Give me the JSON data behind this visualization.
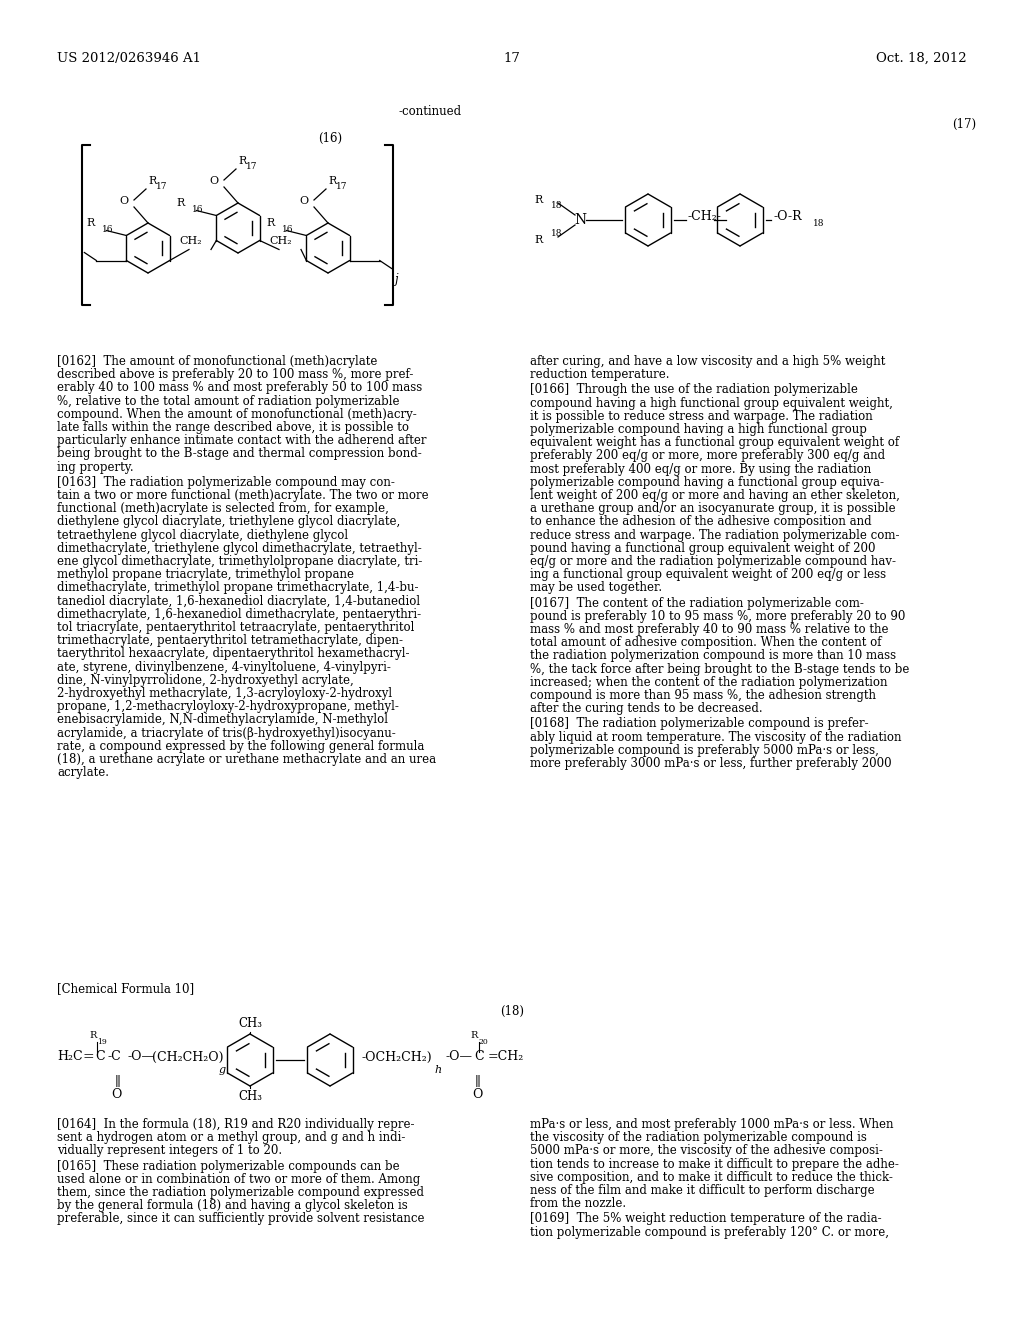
{
  "header_left": "US 2012/0263946 A1",
  "header_right": "Oct. 18, 2012",
  "page_number": "17",
  "continued_label": "-continued",
  "formula_16_label": "(16)",
  "formula_17_label": "(17)",
  "formula_18_label": "(18)",
  "chem_formula_10_label": "[Chemical Formula 10]",
  "background_color": "#ffffff",
  "text_color": "#000000",
  "para_0162": "[0162]  The amount of monofunctional (meth)acrylate\ndescribed above is preferably 20 to 100 mass %, more pref-\nerably 40 to 100 mass % and most preferably 50 to 100 mass\n%, relative to the total amount of radiation polymerizable\ncompound. When the amount of monofunctional (meth)acry-\nlate falls within the range described above, it is possible to\nparticularly enhance intimate contact with the adherend after\nbeing brought to the B-stage and thermal compression bond-\ning property.",
  "para_0163": "[0163]  The radiation polymerizable compound may con-\ntain a two or more functional (meth)acrylate. The two or more\nfunctional (meth)acrylate is selected from, for example,\ndiethylene glycol diacrylate, triethylene glycol diacrylate,\ntetraethylene glycol diacrylate, diethylene glycol\ndimethacrylate, triethylene glycol dimethacrylate, tetraethyl-\nene glycol dimethacrylate, trimethylolpropane diacrylate, tri-\nmethylol propane triacrylate, trimethylol propane\ndimethacrylate, trimethylol propane trimethacrylate, 1,4-bu-\ntanediol diacrylate, 1,6-hexanediol diacrylate, 1,4-butanediol\ndimethacrylate, 1,6-hexanediol dimethacrylate, pentaerythri-\ntol triacrylate, pentaerythritol tetraacrylate, pentaerythritol\ntrimethacrylate, pentaerythritol tetramethacrylate, dipen-\ntaerythritol hexaacrylate, dipentaerythritol hexamethacryl-\nate, styrene, divinylbenzene, 4-vinyltoluene, 4-vinylpyri-\ndine, N-vinylpyrrolidone, 2-hydroxyethyl acrylate,\n2-hydroxyethyl methacrylate, 1,3-acryloyloxy-2-hydroxyl\npropane, 1,2-methacryloyloxy-2-hydroxypropane, methyl-\nenebisacrylamide, N,N-dimethylacrylamide, N-methylol\nacrylamide, a triacrylate of tris(β-hydroxyethyl)isocyanu-\nrate, a compound expressed by the following general formula\n(18), a urethane acrylate or urethane methacrylate and an urea\nacrylate.",
  "para_right_cont": "after curing, and have a low viscosity and a high 5% weight\nreduction temperature.",
  "para_0166": "[0166]  Through the use of the radiation polymerizable\ncompound having a high functional group equivalent weight,\nit is possible to reduce stress and warpage. The radiation\npolymerizable compound having a high functional group\nequivalent weight has a functional group equivalent weight of\npreferably 200 eq/g or more, more preferably 300 eq/g and\nmost preferably 400 eq/g or more. By using the radiation\npolymerizable compound having a functional group equiva-\nlent weight of 200 eq/g or more and having an ether skeleton,\na urethane group and/or an isocyanurate group, it is possible\nto enhance the adhesion of the adhesive composition and\nreduce stress and warpage. The radiation polymerizable com-\npound having a functional group equivalent weight of 200\neq/g or more and the radiation polymerizable compound hav-\ning a functional group equivalent weight of 200 eq/g or less\nmay be used together.",
  "para_0167": "[0167]  The content of the radiation polymerizable com-\npound is preferably 10 to 95 mass %, more preferably 20 to 90\nmass % and most preferably 40 to 90 mass % relative to the\ntotal amount of adhesive composition. When the content of\nthe radiation polymerization compound is more than 10 mass\n%, the tack force after being brought to the B-stage tends to be\nincreased; when the content of the radiation polymerization\ncompound is more than 95 mass %, the adhesion strength\nafter the curing tends to be decreased.",
  "para_0168": "[0168]  The radiation polymerizable compound is prefer-\nably liquid at room temperature. The viscosity of the radiation\npolymerizable compound is preferably 5000 mPa·s or less,\nmore preferably 3000 mPa·s or less, further preferably 2000",
  "para_0164": "[0164]  In the formula (18), R19 and R20 individually repre-\nsent a hydrogen atom or a methyl group, and g and h indi-\nvidually represent integers of 1 to 20.",
  "para_0165": "[0165]  These radiation polymerizable compounds can be\nused alone or in combination of two or more of them. Among\nthem, since the radiation polymerizable compound expressed\nby the general formula (18) and having a glycol skeleton is\npreferable, since it can sufficiently provide solvent resistance",
  "para_mpa": "mPa·s or less, and most preferably 1000 mPa·s or less. When\nthe viscosity of the radiation polymerizable compound is\n5000 mPa·s or more, the viscosity of the adhesive composi-\ntion tends to increase to make it difficult to prepare the adhe-\nsive composition, and to make it difficult to reduce the thick-\nness of the film and make it difficult to perform discharge\nfrom the nozzle.",
  "para_0169": "[0169]  The 5% weight reduction temperature of the radia-\ntion polymerizable compound is preferably 120° C. or more,"
}
